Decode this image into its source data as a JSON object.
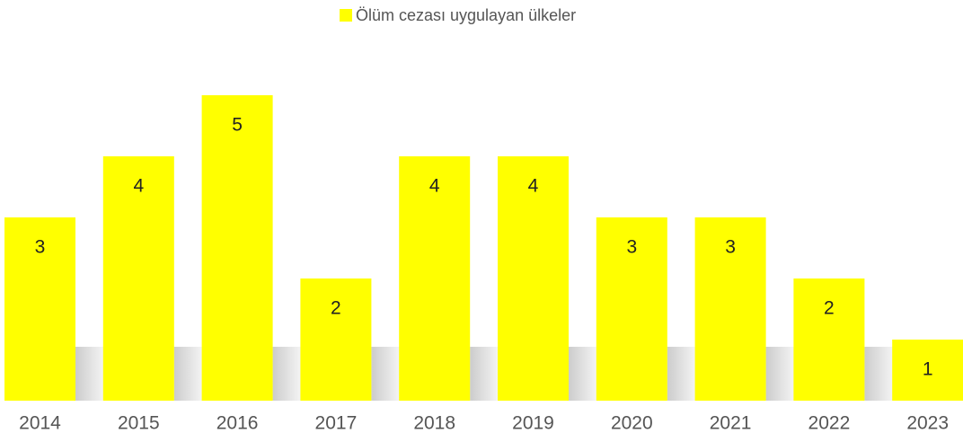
{
  "chart_data": {
    "type": "bar",
    "categories": [
      "2014",
      "2015",
      "2016",
      "2017",
      "2018",
      "2019",
      "2020",
      "2021",
      "2022",
      "2023"
    ],
    "series": [
      {
        "name": "Ölüm cezası uygulayan ülkeler",
        "color": "#ffff00",
        "values": [
          3,
          4,
          5,
          2,
          4,
          4,
          3,
          3,
          2,
          1
        ]
      }
    ],
    "legend": "top"
  }
}
